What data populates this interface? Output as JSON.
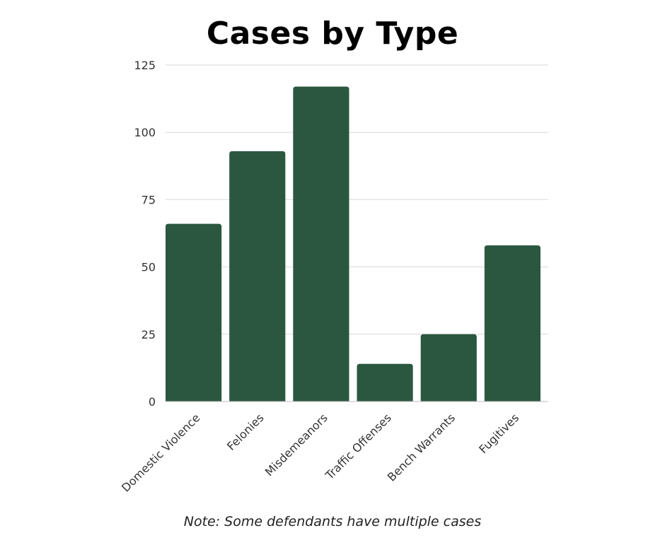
{
  "chart_data": {
    "type": "bar",
    "title": "Cases by Type",
    "categories": [
      "Domestic Violence",
      "Felonies",
      "Misdemeanors",
      "Traffic Offenses",
      "Bench Warrants",
      "Fugitives"
    ],
    "values": [
      66,
      93,
      117,
      14,
      25,
      58
    ],
    "yticks": [
      0,
      25,
      50,
      75,
      100,
      125
    ],
    "ylim": [
      0,
      125
    ],
    "xlabel": "",
    "ylabel": "",
    "grid": true,
    "bar_color": "#2b5740",
    "note": "Note: Some defendants have multiple cases"
  }
}
